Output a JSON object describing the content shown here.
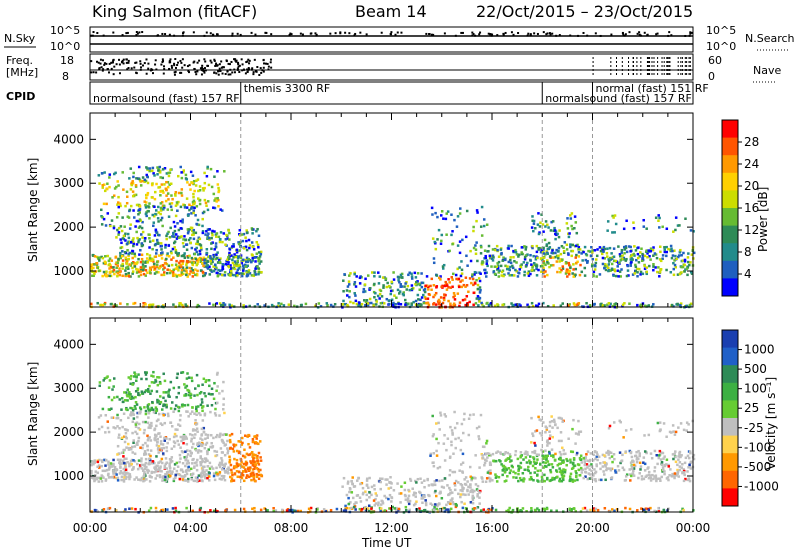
{
  "header": {
    "station": "King Salmon (fitACF)",
    "beam": "Beam 14",
    "date_range": "22/Oct/2015 – 23/Oct/2015"
  },
  "top_strip": {
    "nsky_label": "N.Sky",
    "nsearch_label": "N.Search",
    "freq_label_1": "Freq.",
    "freq_label_2": "[MHz]",
    "nave_label": "Nave",
    "cpid_label": "CPID",
    "left_ticks_nsky": [
      "10^5",
      "10^0"
    ],
    "right_ticks_nsearch": [
      "10^5",
      "10^0"
    ],
    "left_ticks_freq": [
      "18",
      "8"
    ],
    "right_ticks_nave": [
      "60",
      "0"
    ],
    "cpid_segments": [
      {
        "label": "normalsound (fast) 157 RF",
        "start_h": 0,
        "end_h": 6
      },
      {
        "label": "themis 3300 RF",
        "start_h": 6,
        "end_h": 18
      },
      {
        "label": "normalsound (fast) 157 RF",
        "start_h": 18,
        "end_h": 20
      },
      {
        "label": "normal (fast) 151 RF",
        "start_h": 20,
        "end_h": 24
      }
    ]
  },
  "chart_data": [
    {
      "type": "heatmap",
      "name": "power",
      "ylabel": "Slant Range [km]",
      "xlabel": "",
      "xlim_h": [
        0,
        24
      ],
      "ylim": [
        180,
        4600
      ],
      "yticks": [
        1000,
        2000,
        3000,
        4000
      ],
      "cbar_label": "Power [dB]",
      "cbar_ticks": [
        "28",
        "24",
        "20",
        "16",
        "12",
        "8",
        "4"
      ],
      "cbar_colors": [
        "#ff0000",
        "#ff5500",
        "#ff9900",
        "#ffd000",
        "#ccdd00",
        "#66bb33",
        "#2e8b57",
        "#228b8b",
        "#1f5fbf",
        "#0000ff"
      ],
      "dashed_lines_h": [
        6,
        18,
        20
      ]
    },
    {
      "type": "heatmap",
      "name": "velocity",
      "ylabel": "Slant Range [km]",
      "xlabel": "Time UT",
      "xlim_h": [
        0,
        24
      ],
      "ylim": [
        180,
        4600
      ],
      "yticks": [
        1000,
        2000,
        3000,
        4000
      ],
      "xticks": [
        "00:00",
        "04:00",
        "08:00",
        "12:00",
        "16:00",
        "20:00",
        "00:00"
      ],
      "cbar_label": "Velocity [m s⁻¹]",
      "cbar_ticks": [
        "1000",
        "500",
        "100",
        "25",
        "-25",
        "-100",
        "-500",
        "-1000"
      ],
      "cbar_colors": [
        "#1a3fb0",
        "#2060c8",
        "#2e8b57",
        "#3cb043",
        "#66cc33",
        "#bfbfbf",
        "#ffd24d",
        "#ff9900",
        "#ff6600",
        "#ff0000"
      ],
      "dashed_lines_h": [
        6,
        18,
        20
      ]
    }
  ]
}
